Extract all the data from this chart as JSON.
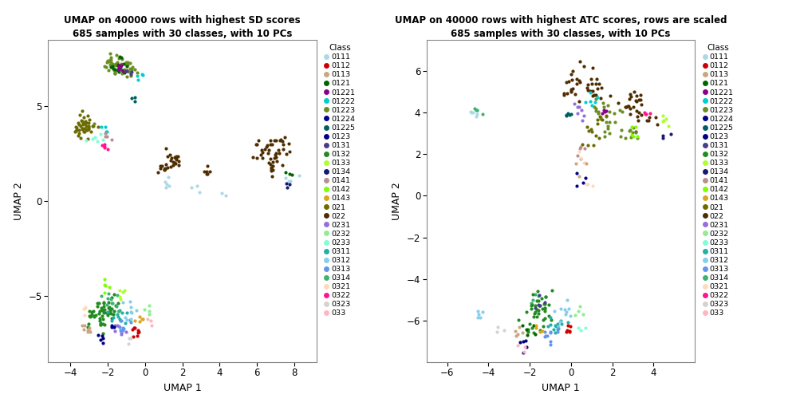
{
  "title1": "UMAP on 40000 rows with highest SD scores\n685 samples with 30 classes, with 10 PCs",
  "title2": "UMAP on 40000 rows with highest ATC scores, rows are scaled\n685 samples with 30 classes, with 10 PCs",
  "xlabel": "UMAP 1",
  "ylabel": "UMAP 2",
  "classes": [
    "0111",
    "0112",
    "0113",
    "0121",
    "01221",
    "01222",
    "01223",
    "01224",
    "01225",
    "0123",
    "0131",
    "0132",
    "0133",
    "0134",
    "0141",
    "0142",
    "0143",
    "021",
    "022",
    "0231",
    "0232",
    "0233",
    "0311",
    "0312",
    "0313",
    "0314",
    "0321",
    "0322",
    "0323",
    "033"
  ],
  "colors": {
    "0111": "#ADD8E6",
    "0112": "#CC0000",
    "0113": "#C8A882",
    "0121": "#006400",
    "01221": "#8B008B",
    "01222": "#00CED1",
    "01223": "#6B8E23",
    "01224": "#00008B",
    "01225": "#005F5F",
    "0123": "#000080",
    "0131": "#483D8B",
    "0132": "#228B22",
    "0133": "#ADFF2F",
    "0134": "#191970",
    "0141": "#BC8F8F",
    "0142": "#7FFF00",
    "0143": "#DAA520",
    "021": "#6B6B00",
    "022": "#4E2D00",
    "0231": "#9370DB",
    "0232": "#90EE90",
    "0233": "#7FFFD4",
    "0311": "#20B2AA",
    "0312": "#87CEEB",
    "0313": "#6495ED",
    "0314": "#3CB371",
    "0321": "#FFDAB9",
    "0322": "#FF1493",
    "0323": "#D3D3D3",
    "033": "#FFB6C1"
  },
  "plot1_xlim": [
    -5.2,
    9.2
  ],
  "plot1_ylim": [
    -8.5,
    8.5
  ],
  "plot2_xlim": [
    -7.0,
    6.0
  ],
  "plot2_ylim": [
    -8.0,
    7.5
  ],
  "plot1_xticks": [
    -4,
    -2,
    0,
    2,
    4,
    6,
    8
  ],
  "plot1_yticks": [
    -5,
    0,
    5
  ],
  "plot2_xticks": [
    -6,
    -4,
    -2,
    0,
    2,
    4
  ],
  "plot2_yticks": [
    -6,
    -4,
    -2,
    0,
    2,
    4,
    6
  ],
  "seed": 42
}
